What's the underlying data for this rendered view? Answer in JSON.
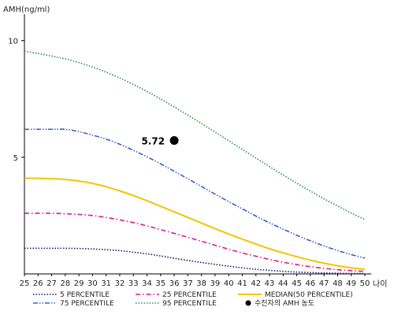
{
  "chart_data": {
    "type": "line",
    "ylabel": "AMH(ng/ml)",
    "xlabel": "나이",
    "xlim": [
      25,
      50
    ],
    "ylim": [
      0,
      11
    ],
    "yticks": [
      5,
      10
    ],
    "x": [
      25,
      26,
      27,
      28,
      29,
      30,
      31,
      32,
      33,
      34,
      35,
      36,
      37,
      38,
      39,
      40,
      41,
      42,
      43,
      44,
      45,
      46,
      47,
      48,
      49,
      50
    ],
    "series": [
      {
        "name": "5 PERCENTILE",
        "color": "#1a1a66",
        "style": "dotted",
        "values": [
          1.1,
          1.1,
          1.1,
          1.1,
          1.09,
          1.07,
          1.04,
          1.0,
          0.93,
          0.86,
          0.77,
          0.67,
          0.58,
          0.49,
          0.41,
          0.33,
          0.26,
          0.2,
          0.15,
          0.11,
          0.08,
          0.06,
          0.04,
          0.03,
          0.02,
          0.02
        ]
      },
      {
        "name": "25 PERCENTILE",
        "color": "#e0198a",
        "style": "dashdot",
        "values": [
          2.6,
          2.6,
          2.6,
          2.58,
          2.55,
          2.5,
          2.42,
          2.32,
          2.2,
          2.06,
          1.9,
          1.74,
          1.57,
          1.4,
          1.23,
          1.06,
          0.9,
          0.76,
          0.62,
          0.5,
          0.4,
          0.31,
          0.24,
          0.18,
          0.14,
          0.11
        ]
      },
      {
        "name": "MEDIAN(50 PERCENTILE)",
        "color": "#f2c500",
        "style": "solid",
        "values": [
          4.1,
          4.1,
          4.08,
          4.05,
          3.98,
          3.88,
          3.74,
          3.56,
          3.36,
          3.14,
          2.9,
          2.66,
          2.42,
          2.18,
          1.94,
          1.71,
          1.49,
          1.28,
          1.08,
          0.9,
          0.74,
          0.59,
          0.46,
          0.35,
          0.26,
          0.2
        ]
      },
      {
        "name": "75 PERCENTILE",
        "color": "#3a5fc8",
        "style": "dashdotdot",
        "values": [
          6.2,
          6.2,
          6.2,
          6.2,
          6.1,
          5.95,
          5.78,
          5.56,
          5.3,
          5.02,
          4.72,
          4.4,
          4.08,
          3.75,
          3.42,
          3.1,
          2.79,
          2.48,
          2.19,
          1.92,
          1.66,
          1.42,
          1.2,
          1.0,
          0.83,
          0.68
        ]
      },
      {
        "name": "95 PERCENTILE",
        "color": "#2e8b57",
        "style": "dotted",
        "values": [
          9.55,
          9.45,
          9.34,
          9.22,
          9.06,
          8.87,
          8.65,
          8.4,
          8.12,
          7.82,
          7.5,
          7.16,
          6.81,
          6.45,
          6.08,
          5.71,
          5.34,
          4.97,
          4.6,
          4.24,
          3.89,
          3.55,
          3.22,
          2.91,
          2.61,
          2.33
        ]
      }
    ],
    "marker": {
      "name": "수진자의 AMH 농도",
      "x": 36,
      "y": 5.72,
      "label": "5.72",
      "color": "#000000"
    },
    "legend_placement": "bottom",
    "grid": false
  }
}
